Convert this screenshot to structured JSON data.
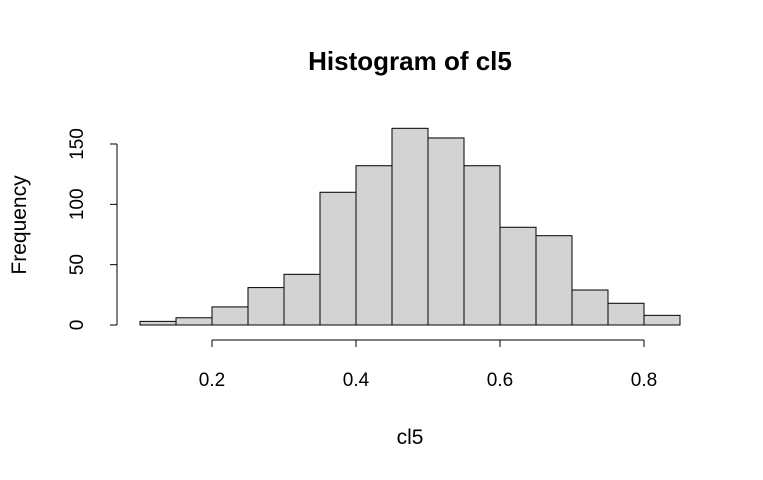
{
  "chart_data": {
    "type": "bar",
    "subtype": "histogram",
    "title": "Histogram of cl5",
    "xlabel": "cl5",
    "ylabel": "Frequency",
    "bin_edges": [
      0.1,
      0.15,
      0.2,
      0.25,
      0.3,
      0.35,
      0.4,
      0.45,
      0.5,
      0.55,
      0.6,
      0.65,
      0.7,
      0.75,
      0.8,
      0.85
    ],
    "values": [
      3,
      6,
      15,
      31,
      42,
      110,
      132,
      163,
      155,
      132,
      81,
      74,
      29,
      18,
      8
    ],
    "xticks": [
      0.2,
      0.4,
      0.6,
      0.8
    ],
    "xtick_labels": [
      "0.2",
      "0.4",
      "0.6",
      "0.8"
    ],
    "xlim": [
      0.1,
      0.85
    ],
    "yticks": [
      0,
      50,
      100,
      150
    ],
    "ytick_labels": [
      "0",
      "50",
      "100",
      "150"
    ],
    "ylim": [
      0,
      163
    ],
    "bar_color": "#d3d3d3",
    "edge_color": "#000000",
    "grid": false,
    "legend": "none"
  }
}
